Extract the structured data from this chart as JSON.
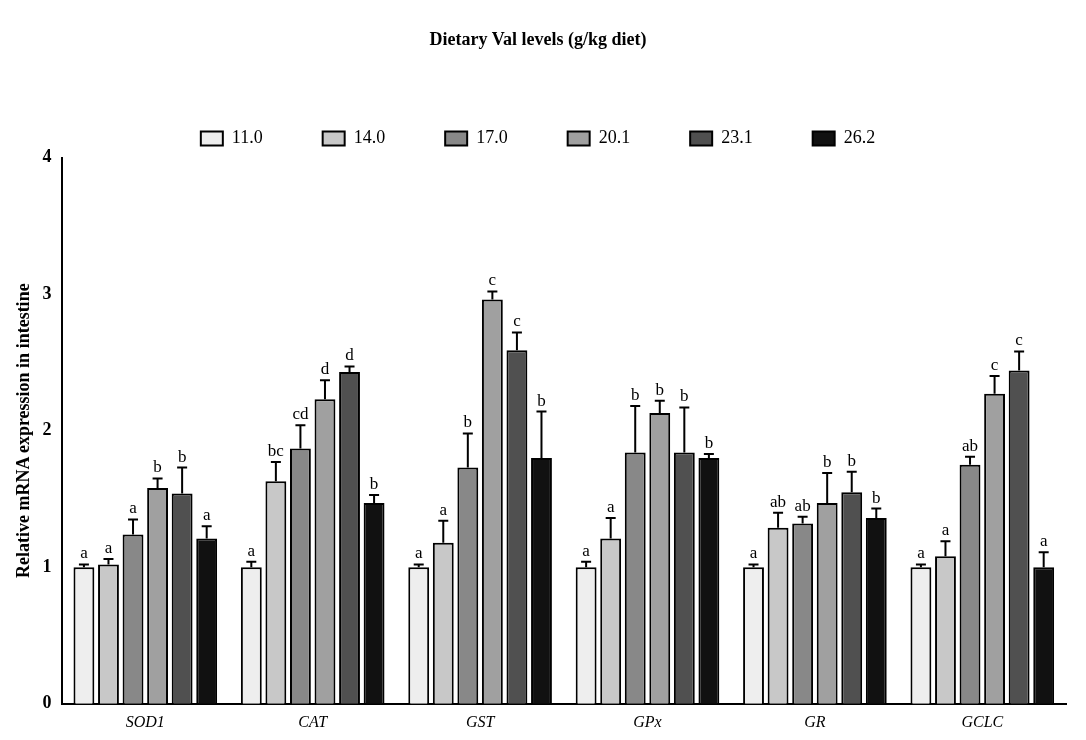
{
  "chart_data": {
    "type": "bar",
    "title": "Dietary Val levels (g/kg diet)",
    "ylabel": "Relative mRNA expression in intestine",
    "categories": [
      "SOD1",
      "CAT",
      "GST",
      "GPx",
      "GR",
      "GCLC"
    ],
    "series": [
      {
        "name": "11.0",
        "color": "#eeeeee",
        "values": [
          1.0,
          1.0,
          1.0,
          1.0,
          1.0,
          1.0
        ],
        "errors": [
          [
            1.0,
            1.02
          ],
          [
            1.0,
            1.04
          ],
          [
            1.0,
            1.02
          ],
          [
            1.0,
            1.04
          ],
          [
            1.0,
            1.02
          ],
          [
            1.0,
            1.02
          ]
        ],
        "value_labels": [
          "a",
          "a",
          "a",
          "a",
          "a",
          "a"
        ]
      },
      {
        "name": "14.0",
        "color": "#c8c8c8",
        "values": [
          1.02,
          1.63,
          1.18,
          1.21,
          1.29,
          1.08
        ],
        "errors": [
          [
            1.02,
            1.06
          ],
          [
            1.63,
            1.77
          ],
          [
            1.18,
            1.34
          ],
          [
            1.21,
            1.36
          ],
          [
            1.29,
            1.4
          ],
          [
            1.08,
            1.19
          ]
        ],
        "value_labels": [
          "a",
          "bc",
          "a",
          "a",
          "ab",
          "a"
        ]
      },
      {
        "name": "17.0",
        "color": "#888888",
        "values": [
          1.24,
          1.87,
          1.73,
          1.84,
          1.32,
          1.75
        ],
        "errors": [
          [
            1.24,
            1.35
          ],
          [
            1.87,
            2.04
          ],
          [
            1.73,
            1.98
          ],
          [
            1.84,
            2.18
          ],
          [
            1.32,
            1.37
          ],
          [
            1.75,
            1.81
          ]
        ],
        "value_labels": [
          "a",
          "cd",
          "b",
          "b",
          "ab",
          "ab"
        ]
      },
      {
        "name": "20.1",
        "color": "#a0a0a0",
        "values": [
          1.58,
          2.23,
          2.96,
          2.13,
          1.47,
          2.27
        ],
        "errors": [
          [
            1.58,
            1.65
          ],
          [
            2.23,
            2.37
          ],
          [
            2.96,
            3.02
          ],
          [
            2.13,
            2.22
          ],
          [
            1.47,
            1.69
          ],
          [
            2.27,
            2.4
          ]
        ],
        "value_labels": [
          "b",
          "d",
          "c",
          "b",
          "b",
          "c"
        ]
      },
      {
        "name": "23.1",
        "color": "#505050",
        "values": [
          1.54,
          2.43,
          2.59,
          1.84,
          1.55,
          2.44
        ],
        "errors": [
          [
            1.54,
            1.73
          ],
          [
            2.43,
            2.47
          ],
          [
            2.59,
            2.72
          ],
          [
            1.84,
            2.17
          ],
          [
            1.55,
            1.7
          ],
          [
            2.44,
            2.58
          ]
        ],
        "value_labels": [
          "b",
          "d",
          "c",
          "b",
          "b",
          "c"
        ]
      },
      {
        "name": "26.2",
        "color": "#111111",
        "values": [
          1.21,
          1.47,
          1.8,
          1.8,
          1.36,
          1.0
        ],
        "errors": [
          [
            1.21,
            1.3
          ],
          [
            1.47,
            1.53
          ],
          [
            1.8,
            2.14
          ],
          [
            1.8,
            1.83
          ],
          [
            1.36,
            1.43
          ],
          [
            1.0,
            1.11
          ]
        ],
        "value_labels": [
          "a",
          "b",
          "b",
          "b",
          "b",
          "a"
        ]
      }
    ],
    "ylim": [
      0,
      4
    ],
    "yticks": [
      0,
      1,
      2,
      3,
      4
    ],
    "grid": false,
    "legend": "top"
  }
}
